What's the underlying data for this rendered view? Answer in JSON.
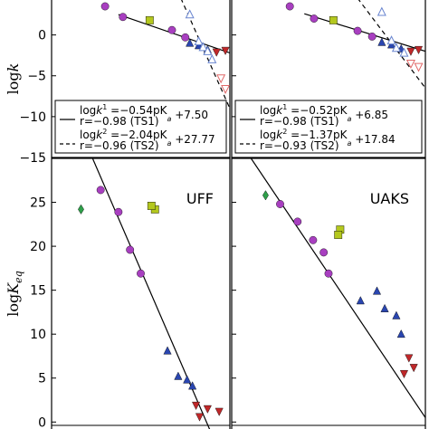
{
  "chart_data": [
    {
      "type": "scatter",
      "panel": "top-left",
      "ylabel": "log k",
      "ylim": [
        -15,
        4.5
      ],
      "yticks": [
        "0",
        "−5",
        "−10",
        "−15"
      ],
      "xlim": [
        -2,
        18
      ],
      "series": [
        {
          "name": "TS1",
          "marker": "mixed",
          "points": [
            {
              "x": 4.0,
              "y": 3.5,
              "m": "circle",
              "c": "#a83fc0"
            },
            {
              "x": 6.0,
              "y": 2.2,
              "m": "circle",
              "c": "#a83fc0"
            },
            {
              "x": 9.0,
              "y": 1.8,
              "m": "square",
              "c": "#b4c81e"
            },
            {
              "x": 11.5,
              "y": 0.6,
              "m": "circle",
              "c": "#a83fc0"
            },
            {
              "x": 13.0,
              "y": -0.3,
              "m": "circle",
              "c": "#a83fc0"
            },
            {
              "x": 13.5,
              "y": -1.0,
              "m": "tri-up",
              "c": "#2a46b0"
            },
            {
              "x": 14.5,
              "y": -1.3,
              "m": "tri-up",
              "c": "#2a46b0"
            },
            {
              "x": 15.5,
              "y": -1.8,
              "m": "tri-up",
              "c": "#2a46b0"
            },
            {
              "x": 16.5,
              "y": -2.1,
              "m": "tri-down",
              "c": "#c0282a"
            },
            {
              "x": 17.5,
              "y": -1.9,
              "m": "tri-down",
              "c": "#c0282a"
            }
          ]
        },
        {
          "name": "TS2",
          "marker": "open",
          "points": [
            {
              "x": 13.5,
              "y": 2.5,
              "m": "tri-up-open",
              "c": "#6a86d0"
            },
            {
              "x": 14.5,
              "y": -0.8,
              "m": "tri-up-open",
              "c": "#6a86d0"
            },
            {
              "x": 15.0,
              "y": -1.5,
              "m": "tri-up-open",
              "c": "#6a86d0"
            },
            {
              "x": 15.5,
              "y": -2.0,
              "m": "tri-up-open",
              "c": "#6a86d0"
            },
            {
              "x": 16.0,
              "y": -3.0,
              "m": "tri-up-open",
              "c": "#6a86d0"
            },
            {
              "x": 17.0,
              "y": -5.3,
              "m": "tri-down-open",
              "c": "#e06a6a"
            },
            {
              "x": 17.5,
              "y": -6.6,
              "m": "tri-down-open",
              "c": "#e06a6a"
            }
          ]
        }
      ],
      "fits": [
        {
          "label_prefix": "log",
          "label_main": "k",
          "label_sup": "1",
          "label_rest": " =−0.54pK",
          "label_sub": "a",
          "label_end": " +7.50",
          "r_text": "r=−0.98 (TS1)",
          "style": "solid",
          "x_start": 5.5,
          "y_start": 2.5,
          "x_end": 18,
          "y_end": -2.2
        },
        {
          "label_prefix": "log",
          "label_main": "k",
          "label_sup": "2",
          "label_rest": " =−2.04pK",
          "label_sub": "a",
          "label_end": " +27.77",
          "r_text": "r=−0.96 (TS2)",
          "style": "dashed",
          "x_start": 12.5,
          "y_start": 4.5,
          "x_end": 18,
          "y_end": -9.0
        }
      ]
    },
    {
      "type": "scatter",
      "panel": "top-right",
      "ylim": [
        -15,
        4.5
      ],
      "xlim": [
        -2,
        18
      ],
      "series": [
        {
          "name": "TS1",
          "marker": "mixed",
          "points": [
            {
              "x": 4.0,
              "y": 3.5,
              "m": "circle",
              "c": "#a83fc0"
            },
            {
              "x": 6.5,
              "y": 2.0,
              "m": "circle",
              "c": "#a83fc0"
            },
            {
              "x": 8.5,
              "y": 1.8,
              "m": "square",
              "c": "#b4c81e"
            },
            {
              "x": 11.0,
              "y": 0.5,
              "m": "circle",
              "c": "#a83fc0"
            },
            {
              "x": 12.5,
              "y": -0.2,
              "m": "circle",
              "c": "#a83fc0"
            },
            {
              "x": 13.5,
              "y": -0.9,
              "m": "tri-up",
              "c": "#2a46b0"
            },
            {
              "x": 14.5,
              "y": -1.2,
              "m": "tri-up",
              "c": "#2a46b0"
            },
            {
              "x": 15.5,
              "y": -1.7,
              "m": "tri-up",
              "c": "#2a46b0"
            },
            {
              "x": 16.5,
              "y": -2.0,
              "m": "tri-down",
              "c": "#c0282a"
            },
            {
              "x": 17.3,
              "y": -1.8,
              "m": "tri-down",
              "c": "#c0282a"
            }
          ]
        },
        {
          "name": "TS2",
          "marker": "open",
          "points": [
            {
              "x": 13.5,
              "y": 2.8,
              "m": "tri-up-open",
              "c": "#6a86d0"
            },
            {
              "x": 14.5,
              "y": -0.7,
              "m": "tri-up-open",
              "c": "#6a86d0"
            },
            {
              "x": 15.0,
              "y": -1.6,
              "m": "tri-up-open",
              "c": "#6a86d0"
            },
            {
              "x": 15.8,
              "y": -2.2,
              "m": "tri-up-open",
              "c": "#6a86d0"
            },
            {
              "x": 16.5,
              "y": -3.5,
              "m": "tri-down-open",
              "c": "#e06a6a"
            },
            {
              "x": 17.3,
              "y": -3.9,
              "m": "tri-down-open",
              "c": "#e06a6a"
            }
          ]
        }
      ],
      "fits": [
        {
          "label_prefix": "log",
          "label_main": "k",
          "label_sup": "1",
          "label_rest": " =−0.52pK",
          "label_sub": "a",
          "label_end": " +6.85",
          "r_text": "r=−0.98 (TS1)",
          "style": "solid",
          "x_start": 5.5,
          "y_start": 2.6,
          "x_end": 18,
          "y_end": -2.0
        },
        {
          "label_prefix": "log",
          "label_main": "k",
          "label_sup": "2",
          "label_rest": " =−1.37pK",
          "label_sub": "a",
          "label_end": " +17.84",
          "r_text": "r=−0.93 (TS2)",
          "style": "dashed",
          "x_start": 11.0,
          "y_start": 4.5,
          "x_end": 18,
          "y_end": -6.5
        }
      ]
    },
    {
      "type": "scatter",
      "panel": "bottom-left",
      "title": "UFF",
      "ylabel": "log K_eq",
      "ylim": [
        -1,
        30
      ],
      "yticks": [
        "25",
        "20",
        "15",
        "10",
        "5",
        "0"
      ],
      "xlim": [
        -2,
        18
      ],
      "series": [
        {
          "name": "",
          "points": [
            {
              "x": 1.3,
              "y": 24.2,
              "m": "diamond",
              "c": "#2ea04a"
            },
            {
              "x": 3.5,
              "y": 26.4,
              "m": "circle",
              "c": "#a83fc0"
            },
            {
              "x": 5.5,
              "y": 23.9,
              "m": "circle",
              "c": "#a83fc0"
            },
            {
              "x": 6.8,
              "y": 19.6,
              "m": "circle",
              "c": "#a83fc0"
            },
            {
              "x": 8.0,
              "y": 16.9,
              "m": "circle",
              "c": "#a83fc0"
            },
            {
              "x": 9.6,
              "y": 24.2,
              "m": "square",
              "c": "#b4c81e"
            },
            {
              "x": 9.2,
              "y": 24.6,
              "m": "square",
              "c": "#b4c81e"
            },
            {
              "x": 11.0,
              "y": 8.1,
              "m": "tri-up",
              "c": "#2a46b0"
            },
            {
              "x": 12.2,
              "y": 5.2,
              "m": "tri-up",
              "c": "#2a46b0"
            },
            {
              "x": 13.2,
              "y": 4.8,
              "m": "tri-up",
              "c": "#2a46b0"
            },
            {
              "x": 13.8,
              "y": 4.1,
              "m": "tri-up",
              "c": "#2a46b0"
            },
            {
              "x": 14.2,
              "y": 1.9,
              "m": "tri-down",
              "c": "#c0282a"
            },
            {
              "x": 14.6,
              "y": 0.6,
              "m": "tri-down",
              "c": "#c0282a"
            },
            {
              "x": 15.5,
              "y": 1.5,
              "m": "tri-down",
              "c": "#c0282a"
            },
            {
              "x": 16.8,
              "y": 1.2,
              "m": "tri-down",
              "c": "#c0282a"
            }
          ]
        }
      ],
      "fits": [
        {
          "style": "solid",
          "x_start": 2.6,
          "y_start": 30.0,
          "x_end": 15.8,
          "y_end": -1.0
        }
      ]
    },
    {
      "type": "scatter",
      "panel": "bottom-right",
      "title": "UAKS",
      "ylim": [
        -1,
        30
      ],
      "xlim": [
        -2,
        18
      ],
      "series": [
        {
          "name": "",
          "points": [
            {
              "x": 1.5,
              "y": 25.8,
              "m": "diamond",
              "c": "#2ea04a"
            },
            {
              "x": 3.0,
              "y": 24.8,
              "m": "circle",
              "c": "#a83fc0"
            },
            {
              "x": 4.8,
              "y": 22.8,
              "m": "circle",
              "c": "#a83fc0"
            },
            {
              "x": 6.4,
              "y": 20.7,
              "m": "circle",
              "c": "#a83fc0"
            },
            {
              "x": 7.5,
              "y": 19.3,
              "m": "circle",
              "c": "#a83fc0"
            },
            {
              "x": 8.0,
              "y": 16.9,
              "m": "circle",
              "c": "#a83fc0"
            },
            {
              "x": 9.2,
              "y": 21.9,
              "m": "square",
              "c": "#b4c81e"
            },
            {
              "x": 9.0,
              "y": 21.3,
              "m": "square",
              "c": "#b4c81e"
            },
            {
              "x": 11.3,
              "y": 13.8,
              "m": "tri-up",
              "c": "#2a46b0"
            },
            {
              "x": 13.0,
              "y": 14.9,
              "m": "tri-up",
              "c": "#2a46b0"
            },
            {
              "x": 13.8,
              "y": 12.9,
              "m": "tri-up",
              "c": "#2a46b0"
            },
            {
              "x": 15.0,
              "y": 12.1,
              "m": "tri-up",
              "c": "#2a46b0"
            },
            {
              "x": 15.5,
              "y": 10.0,
              "m": "tri-up",
              "c": "#2a46b0"
            },
            {
              "x": 15.8,
              "y": 5.5,
              "m": "tri-down",
              "c": "#c0282a"
            },
            {
              "x": 16.3,
              "y": 7.3,
              "m": "tri-down",
              "c": "#c0282a"
            },
            {
              "x": 16.8,
              "y": 6.2,
              "m": "tri-down",
              "c": "#c0282a"
            }
          ]
        }
      ],
      "fits": [
        {
          "style": "solid",
          "x_start": 0.0,
          "y_start": 30.0,
          "x_end": 18.0,
          "y_end": 0.5
        }
      ]
    }
  ]
}
